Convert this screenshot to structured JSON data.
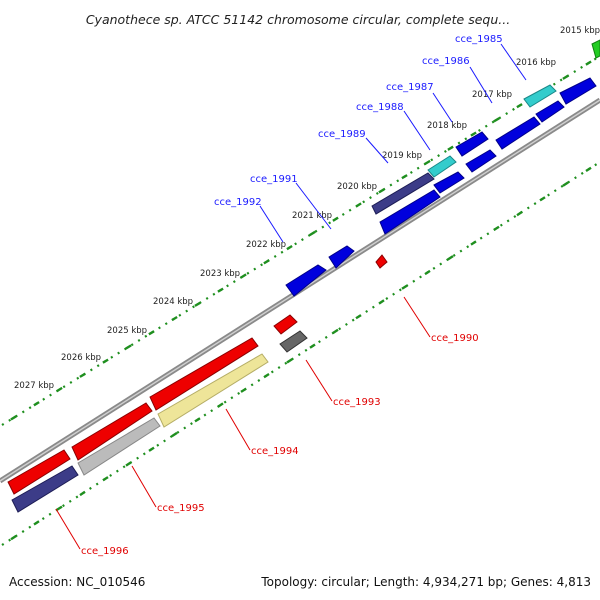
{
  "title": "Cyanothece sp. ATCC 51142 chromosome circular, complete sequ...",
  "footer": {
    "accession": "Accession: NC_010546",
    "summary": "Topology: circular; Length: 4,934,271 bp; Genes: 4,813"
  },
  "colors": {
    "forward_label": "#1a1aff",
    "reverse_label": "#e00000",
    "tick": "#1f8f1f",
    "backbone": "#8a8a8a"
  },
  "kbp_labels": [
    "2015 kbp",
    "2016 kbp",
    "2017 kbp",
    "2018 kbp",
    "2019 kbp",
    "2020 kbp",
    "2021 kbp",
    "2022 kbp",
    "2023 kbp",
    "2024 kbp",
    "2025 kbp",
    "2026 kbp",
    "2027 kbp"
  ],
  "genes_forward": [
    {
      "name": "cce_1985",
      "color": "#33cccc"
    },
    {
      "name": "cce_1986",
      "color": "#0000dd"
    },
    {
      "name": "cce_1987",
      "color": "#33cccc"
    },
    {
      "name": "cce_1988",
      "color": "#0000dd"
    },
    {
      "name": "cce_1989",
      "color": "#444488"
    },
    {
      "name": "cce_1991",
      "color": "#0000dd"
    },
    {
      "name": "cce_1992",
      "color": "#0000dd"
    }
  ],
  "genes_reverse": [
    {
      "name": "cce_1990",
      "color": "#ee0000"
    },
    {
      "name": "cce_1993",
      "color": "#666666"
    },
    {
      "name": "cce_1994",
      "color": "#eee599"
    },
    {
      "name": "cce_1995",
      "color": "#bbbbbb"
    },
    {
      "name": "cce_1996",
      "color": "#444488"
    }
  ]
}
